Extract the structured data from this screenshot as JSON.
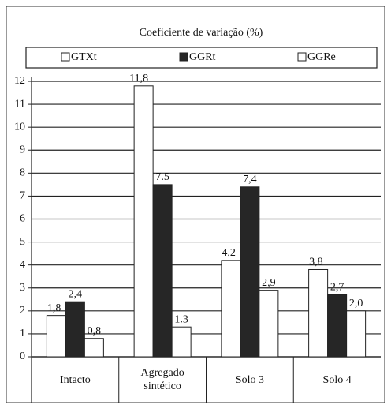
{
  "chart_data": {
    "type": "bar",
    "title": "Coeficiente de variação (%)",
    "categories": [
      "Intacto",
      "Agregado sintético",
      "Solo 3",
      "Solo 4"
    ],
    "series": [
      {
        "name": "GTXt",
        "color": "#ffffff",
        "values": [
          1.8,
          11.8,
          4.2,
          3.8
        ],
        "value_labels": [
          "1,8",
          "11,8",
          "4,2",
          "3,8"
        ]
      },
      {
        "name": "GGRt",
        "color": "#262626",
        "values": [
          2.4,
          7.5,
          7.4,
          2.7
        ],
        "value_labels": [
          "2,4",
          "7.5",
          "7,4",
          "2,7"
        ]
      },
      {
        "name": "GGRe",
        "color": "#ffffff",
        "values": [
          0.8,
          1.3,
          2.9,
          2.0
        ],
        "value_labels": [
          "0,8",
          "1.3",
          "2,9",
          "2,0"
        ]
      }
    ],
    "ylim": [
      0,
      12
    ],
    "yticks": [
      0,
      1,
      2,
      3,
      4,
      5,
      6,
      7,
      8,
      9,
      10,
      11,
      12
    ],
    "grid": true
  }
}
